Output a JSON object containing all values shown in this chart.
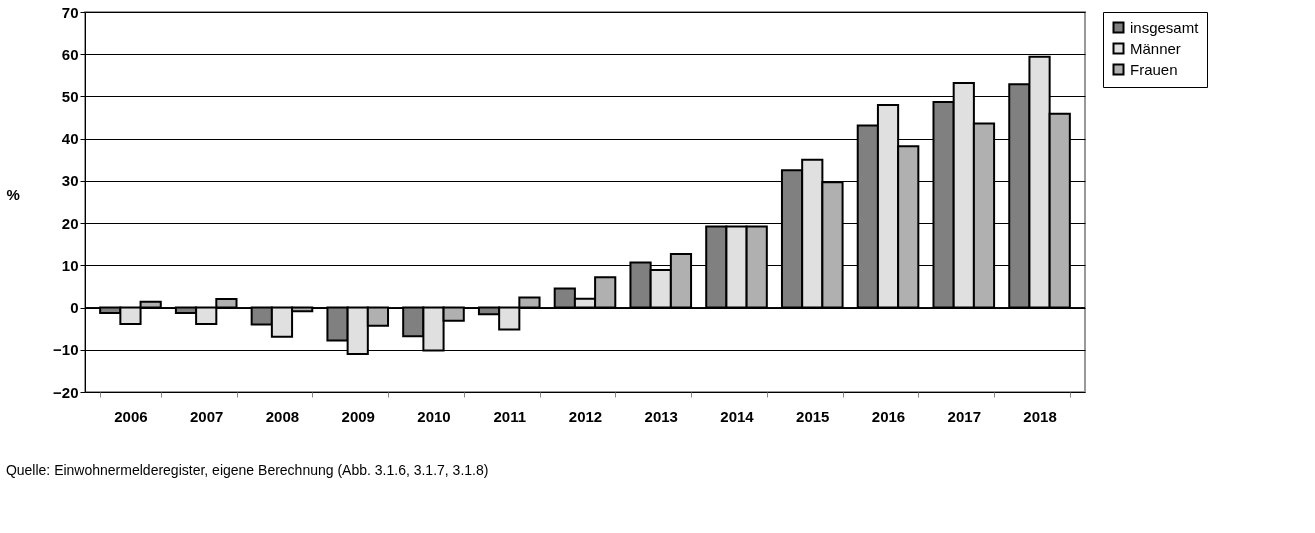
{
  "chart_data": {
    "type": "bar",
    "ylabel": "%",
    "categories": [
      "2006",
      "2007",
      "2008",
      "2009",
      "2010",
      "2011",
      "2012",
      "2013",
      "2014",
      "2015",
      "2016",
      "2017",
      "2018"
    ],
    "series": [
      {
        "name": "insgesamt",
        "color": "#808080",
        "values": [
          -1.3,
          -1.3,
          -4.0,
          -7.8,
          -6.8,
          -1.6,
          4.5,
          10.7,
          19.2,
          32.5,
          43.1,
          48.7,
          52.9
        ]
      },
      {
        "name": "Männer",
        "color": "#e0e0e0",
        "values": [
          -3.9,
          -3.9,
          -6.9,
          -11.0,
          -10.2,
          -5.2,
          2.1,
          8.9,
          19.2,
          35.0,
          48.0,
          53.2,
          59.4
        ]
      },
      {
        "name": "Frauen",
        "color": "#b0b0b0",
        "values": [
          1.4,
          2.0,
          -0.9,
          -4.3,
          -3.1,
          2.4,
          7.2,
          12.7,
          19.2,
          29.7,
          38.2,
          43.6,
          45.9
        ]
      }
    ],
    "ylim": [
      -20,
      70
    ],
    "yticks": [
      -20,
      -10,
      0,
      10,
      20,
      30,
      40,
      50,
      60,
      70
    ],
    "grid": "y",
    "legend": "right",
    "annotations": [
      "Quelle: Einwohnermelderegister, eigene Berechnung (Abb. 3.1.6, 3.1.7, 3.1.8)"
    ]
  }
}
